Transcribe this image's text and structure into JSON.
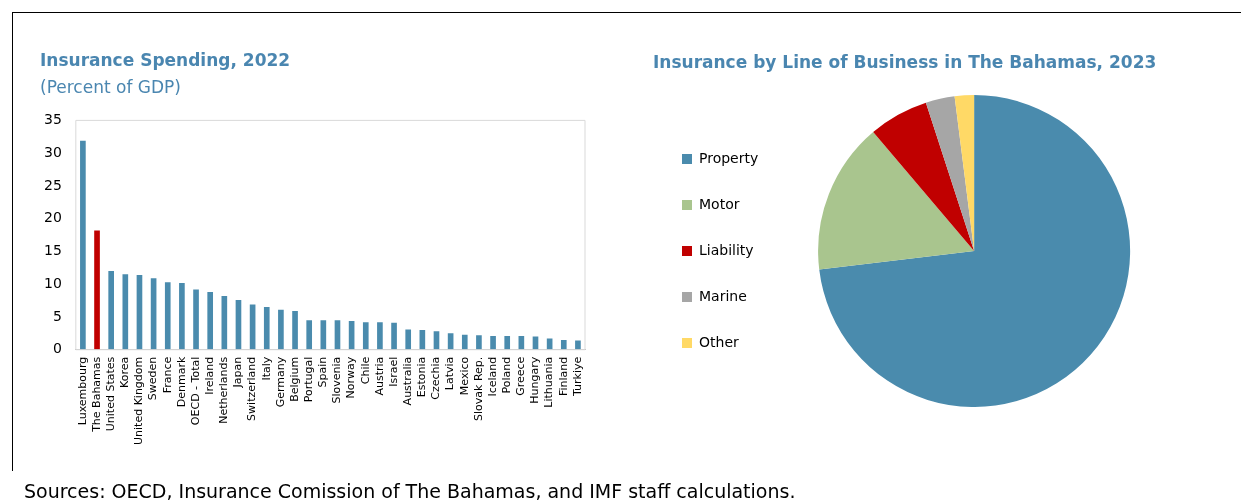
{
  "chart_data": [
    {
      "type": "bar",
      "title": "Insurance Spending, 2022",
      "subtitle": "(Percent of GDP)",
      "categories": [
        "Luxembourg",
        "The Bahamas",
        "United States",
        "Korea",
        "United Kingdom",
        "Sweden",
        "France",
        "Denmark",
        "OECD - Total",
        "Ireland",
        "Netherlands",
        "Japan",
        "Switzerland",
        "Italy",
        "Germany",
        "Belgium",
        "Portugal",
        "Spain",
        "Slovenia",
        "Norway",
        "Chile",
        "Austria",
        "Israel",
        "Australia",
        "Estonia",
        "Czechia",
        "Latvia",
        "Mexico",
        "Slovak Rep.",
        "Iceland",
        "Poland",
        "Greece",
        "Hungary",
        "Lithuania",
        "Finland",
        "Turkiye"
      ],
      "values": [
        31.9,
        18.2,
        12.0,
        11.5,
        11.4,
        10.9,
        10.3,
        10.2,
        9.2,
        8.8,
        8.2,
        7.6,
        6.9,
        6.5,
        6.1,
        5.9,
        4.5,
        4.5,
        4.5,
        4.4,
        4.2,
        4.2,
        4.1,
        3.1,
        3.0,
        2.8,
        2.5,
        2.3,
        2.2,
        2.1,
        2.1,
        2.1,
        2.0,
        1.7,
        1.5,
        1.4
      ],
      "colors": [
        "#4a8bad",
        "#c00000",
        "#4a8bad",
        "#4a8bad",
        "#4a8bad",
        "#4a8bad",
        "#4a8bad",
        "#4a8bad",
        "#4a8bad",
        "#4a8bad",
        "#4a8bad",
        "#4a8bad",
        "#4a8bad",
        "#4a8bad",
        "#4a8bad",
        "#4a8bad",
        "#4a8bad",
        "#4a8bad",
        "#4a8bad",
        "#4a8bad",
        "#4a8bad",
        "#4a8bad",
        "#4a8bad",
        "#4a8bad",
        "#4a8bad",
        "#4a8bad",
        "#4a8bad",
        "#4a8bad",
        "#4a8bad",
        "#4a8bad",
        "#4a8bad",
        "#4a8bad",
        "#4a8bad",
        "#4a8bad",
        "#4a8bad",
        "#4a8bad"
      ],
      "ylim": [
        0,
        35
      ],
      "yticks": [
        0,
        5,
        10,
        15,
        20,
        25,
        30,
        35
      ],
      "grid": false,
      "legend": false,
      "annotations": [
        "Sources: OECD, Insurance Comission of The Bahamas, and IMF staff calculations."
      ]
    },
    {
      "type": "pie",
      "title": "Insurance by Line of Business in The Bahamas, 2023",
      "categories": [
        "Property",
        "Motor",
        "Liability",
        "Marine",
        "Other"
      ],
      "values": [
        73.1,
        15.7,
        6.2,
        3.0,
        2.0
      ],
      "colors": [
        "#4a8bad",
        "#a9c58e",
        "#c00000",
        "#a6a6a6",
        "#ffd966"
      ],
      "legend": "left"
    }
  ]
}
